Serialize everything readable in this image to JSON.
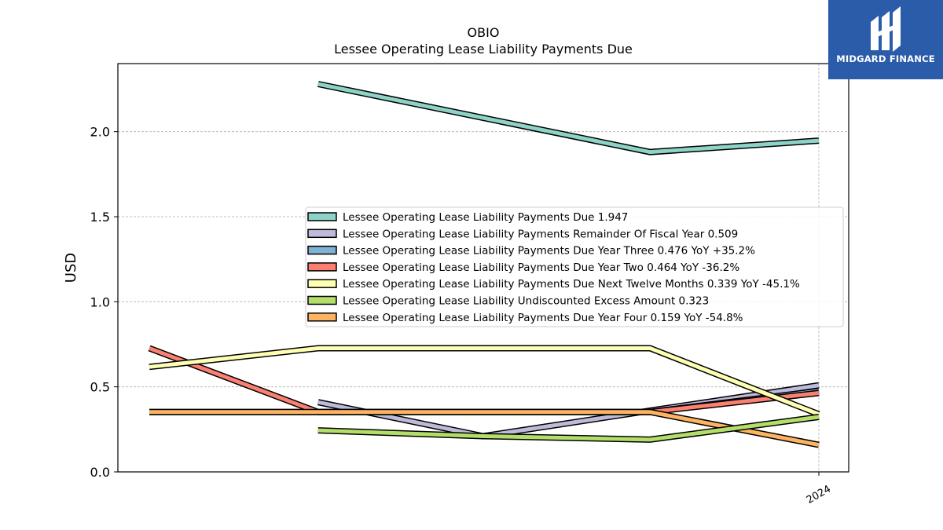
{
  "chart_data": {
    "type": "line",
    "title": "OBIO",
    "subtitle": "Lessee Operating Lease Liability Payments Due",
    "xlabel": "",
    "ylabel": "USD",
    "x": [
      "2022-10-01",
      "2023-01-01",
      "2023-04-01",
      "2023-07-01",
      "2023-10-01"
    ],
    "x_ticks": [
      "2024"
    ],
    "ylim": [
      0.0,
      2.4
    ],
    "y_ticks": [
      "0.0",
      "0.5",
      "1.0",
      "1.5",
      "2.0"
    ],
    "grid": true,
    "legend_position": "center-right",
    "series": [
      {
        "name": "Lessee Operating Lease Liability Payments Due",
        "legend": "Lessee Operating Lease Liability Payments Due  1.947",
        "color": "#8dd3c7",
        "values": [
          null,
          2.28,
          null,
          1.88,
          1.947
        ]
      },
      {
        "name": "Lessee Operating Lease Liability Payments Remainder Of Fiscal Year",
        "legend": "Lessee Operating Lease Liability Payments Remainder Of Fiscal Year  0.509",
        "color": "#bebada",
        "values": [
          null,
          0.41,
          0.21,
          0.36,
          0.509
        ]
      },
      {
        "name": "Lessee Operating Lease Liability Payments Due Year Three",
        "legend": "Lessee Operating Lease Liability Payments Due Year Three  0.476 YoY +35.2%",
        "color": "#80b1d3",
        "values": [
          0.352,
          0.352,
          0.352,
          0.352,
          0.476
        ]
      },
      {
        "name": "Lessee Operating Lease Liability Payments Due Year Two",
        "legend": "Lessee Operating Lease Liability Payments Due Year Two  0.464 YoY -36.2%",
        "color": "#fb8072",
        "values": [
          0.727,
          0.352,
          0.352,
          0.352,
          0.464
        ]
      },
      {
        "name": "Lessee Operating Lease Liability Payments Due Next Twelve Months",
        "legend": "Lessee Operating Lease Liability Payments Due Next Twelve Months  0.339 YoY -45.1%",
        "color": "#ffffb3",
        "values": [
          0.617,
          0.727,
          0.727,
          0.727,
          0.339
        ]
      },
      {
        "name": "Lessee Operating Lease Liability Undiscounted Excess Amount",
        "legend": "Lessee Operating Lease Liability Undiscounted Excess Amount  0.323",
        "color": "#b3de69",
        "values": [
          null,
          0.244,
          0.21,
          0.19,
          0.323
        ]
      },
      {
        "name": "Lessee Operating Lease Liability Payments Due Year Four",
        "legend": "Lessee Operating Lease Liability Payments Due Year Four  0.159 YoY -54.8%",
        "color": "#fdb462",
        "values": [
          0.352,
          0.352,
          0.352,
          0.352,
          0.159
        ]
      }
    ]
  },
  "logo": {
    "text": "MIDGARD FINANCE",
    "color": "#2a5caa"
  }
}
